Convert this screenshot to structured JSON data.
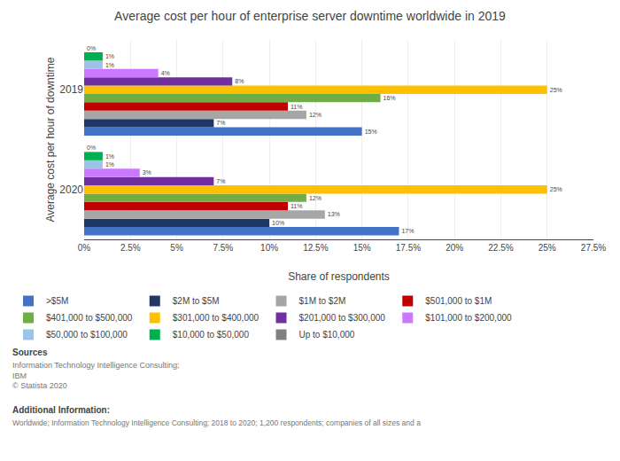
{
  "chart_data": {
    "type": "bar",
    "orientation": "horizontal",
    "title": "Average cost per hour of enterprise server downtime worldwide in 2019",
    "xlabel": "Share of respondents",
    "ylabel": "Average cost per hour of downtime",
    "categories": [
      "2019",
      "2020"
    ],
    "series": [
      {
        "name": ">$5M",
        "color": "#4472c4",
        "values": [
          15,
          17
        ],
        "value_labels": [
          "15%",
          "17%"
        ]
      },
      {
        "name": "$2M to $5M",
        "color": "#1f3864",
        "values": [
          7,
          10
        ],
        "value_labels": [
          "7%",
          "10%"
        ]
      },
      {
        "name": "$1M to $2M",
        "color": "#a6a6a6",
        "values": [
          12,
          13
        ],
        "value_labels": [
          "12%",
          "13%"
        ]
      },
      {
        "name": "$501,000 to $1M",
        "color": "#c00000",
        "values": [
          11,
          11
        ],
        "value_labels": [
          "11%",
          "11%"
        ]
      },
      {
        "name": "$401,000 to $500,000",
        "color": "#70ad47",
        "values": [
          16,
          12
        ],
        "value_labels": [
          "16%",
          "12%"
        ]
      },
      {
        "name": "$301,000 to $400,000",
        "color": "#ffc000",
        "values": [
          25,
          25
        ],
        "value_labels": [
          "25%",
          "25%"
        ]
      },
      {
        "name": "$201,000 to $300,000",
        "color": "#7030a0",
        "values": [
          8,
          7
        ],
        "value_labels": [
          "8%",
          "7%"
        ]
      },
      {
        "name": "$101,000 to $200,000",
        "color": "#cc77ff",
        "values": [
          4,
          3
        ],
        "value_labels": [
          "4%",
          "3%"
        ]
      },
      {
        "name": "$50,000 to $100,000",
        "color": "#9dc3e6",
        "values": [
          1,
          1
        ],
        "value_labels": [
          "1%",
          "1%"
        ]
      },
      {
        "name": "$10,000 to $50,000",
        "color": "#00b050",
        "values": [
          1,
          1
        ],
        "value_labels": [
          "1%",
          "1%"
        ]
      },
      {
        "name": "Up to $10,000",
        "color": "#808080",
        "values": [
          0,
          0
        ],
        "value_labels": [
          "0%",
          "0%"
        ]
      }
    ],
    "xlim": [
      0,
      27.5
    ],
    "xticks": [
      {
        "value": 0,
        "label": "0%"
      },
      {
        "value": 2.5,
        "label": "2.5%"
      },
      {
        "value": 5,
        "label": "5%"
      },
      {
        "value": 7.5,
        "label": "7.5%"
      },
      {
        "value": 10,
        "label": "10%"
      },
      {
        "value": 12.5,
        "label": "12.5%"
      },
      {
        "value": 15,
        "label": "15%"
      },
      {
        "value": 17.5,
        "label": "17.5%"
      },
      {
        "value": 20,
        "label": "20%"
      },
      {
        "value": 22.5,
        "label": "22.5%"
      },
      {
        "value": 25,
        "label": "25%"
      },
      {
        "value": 27.5,
        "label": "27.5%"
      }
    ],
    "grid": true,
    "data_labels": true,
    "legend": "bottom",
    "annotations": [
      "Sources",
      "Information Technology Intelligence Consulting;\nIBM\n© Statista 2020",
      "Additional Information:",
      "Worldwide; Information Technology Intelligence Consulting; 2018 to 2020; 1,200 respondents; companies of all sizes and a"
    ]
  }
}
